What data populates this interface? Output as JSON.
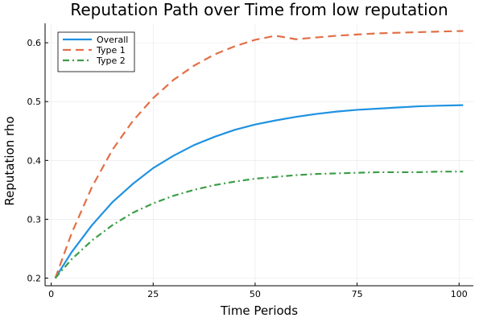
{
  "chart_data": {
    "type": "line",
    "title": "Reputation Path over Time from low reputation",
    "xlabel": "Time Periods",
    "ylabel": "Reputation rho",
    "xlim": [
      -1.5,
      103.5
    ],
    "ylim": [
      0.187,
      0.633
    ],
    "xticks": [
      0,
      25,
      50,
      75,
      100
    ],
    "yticks": [
      0.2,
      0.3,
      0.4,
      0.5,
      0.6
    ],
    "grid": true,
    "legend_position": "top-left",
    "series": [
      {
        "name": "Overall",
        "color": "#1f92e0",
        "dash": "solid",
        "x": [
          1,
          5,
          10,
          15,
          20,
          25,
          30,
          35,
          40,
          45,
          50,
          55,
          60,
          65,
          70,
          75,
          80,
          85,
          90,
          95,
          101
        ],
        "y": [
          0.2,
          0.244,
          0.29,
          0.329,
          0.36,
          0.387,
          0.408,
          0.426,
          0.44,
          0.452,
          0.461,
          0.468,
          0.474,
          0.479,
          0.483,
          0.486,
          0.488,
          0.49,
          0.492,
          0.493,
          0.494
        ]
      },
      {
        "name": "Type 1",
        "color": "#e26f46",
        "dash": "dashed",
        "x": [
          1,
          5,
          10,
          15,
          20,
          25,
          30,
          35,
          40,
          45,
          50,
          55,
          60,
          65,
          70,
          75,
          80,
          85,
          90,
          95,
          101
        ],
        "y": [
          0.2,
          0.276,
          0.355,
          0.418,
          0.467,
          0.506,
          0.537,
          0.561,
          0.58,
          0.594,
          0.605,
          0.612,
          0.606,
          0.609,
          0.612,
          0.614,
          0.616,
          0.617,
          0.618,
          0.619,
          0.62
        ]
      },
      {
        "name": "Type 2",
        "color": "#3d9d49",
        "dash": "dashdot",
        "x": [
          1,
          5,
          10,
          15,
          20,
          25,
          30,
          35,
          40,
          45,
          50,
          55,
          60,
          65,
          70,
          75,
          80,
          85,
          90,
          95,
          101
        ],
        "y": [
          0.2,
          0.232,
          0.264,
          0.29,
          0.311,
          0.327,
          0.34,
          0.35,
          0.358,
          0.364,
          0.369,
          0.372,
          0.375,
          0.377,
          0.378,
          0.379,
          0.38,
          0.38,
          0.38,
          0.381,
          0.381
        ]
      }
    ]
  }
}
